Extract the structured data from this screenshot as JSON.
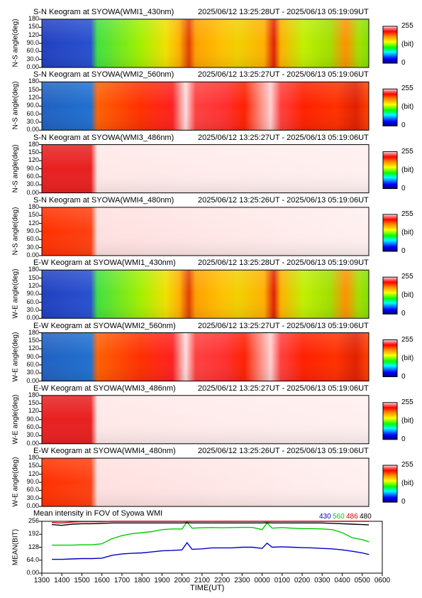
{
  "keogram_panels": [
    {
      "title": "S-N Keogram at SYOWA(WMI1_430nm)",
      "range": "2025/06/12 13:25:28UT - 2025/06/13 05:19:09UT",
      "ylabel": "N-S angle(deg)",
      "profile": "430"
    },
    {
      "title": "S-N Keogram at SYOWA(WMI2_560nm)",
      "range": "2025/06/12 13:25:27UT - 2025/06/13 05:19:06UT",
      "ylabel": "N-S angle(deg)",
      "profile": "560"
    },
    {
      "title": "S-N Keogram at SYOWA(WMI3_486nm)",
      "range": "2025/06/12 13:25:27UT - 2025/06/13 05:19:06UT",
      "ylabel": "N-S angle(deg)",
      "profile": "486"
    },
    {
      "title": "S-N Keogram at SYOWA(WMI4_480nm)",
      "range": "2025/06/12 13:25:26UT - 2025/06/13 05:19:06UT",
      "ylabel": "N-S angle(deg)",
      "profile": "480"
    },
    {
      "title": "E-W Keogram at SYOWA(WMI1_430nm)",
      "range": "2025/06/12 13:25:28UT - 2025/06/13 05:19:09UT",
      "ylabel": "W-E angle(deg)",
      "profile": "430"
    },
    {
      "title": "E-W Keogram at SYOWA(WMI2_560nm)",
      "range": "2025/06/12 13:25:27UT - 2025/06/13 05:19:06UT",
      "ylabel": "W-E angle(deg)",
      "profile": "560"
    },
    {
      "title": "E-W Keogram at SYOWA(WMI3_486nm)",
      "range": "2025/06/12 13:25:27UT - 2025/06/13 05:19:06UT",
      "ylabel": "W-E angle(deg)",
      "profile": "486"
    },
    {
      "title": "E-W Keogram at SYOWA(WMI4_480nm)",
      "range": "2025/06/12 13:25:26UT - 2025/06/13 05:19:06UT",
      "ylabel": "W-E angle(deg)",
      "profile": "480"
    }
  ],
  "keogram_yticks": [
    "180",
    "150",
    "120",
    "90.0",
    "60.0",
    "30.0",
    "0.00"
  ],
  "colorbar": {
    "max": "255",
    "unit": "(bit)",
    "min": "0"
  },
  "chart_data": {
    "type": "line",
    "title": "Mean intensity in FOV of Syowa WMI",
    "xlabel": "TIME(UT)",
    "ylabel": "MEAN(BIT)",
    "ylim": [
      0,
      256
    ],
    "yticks": [
      "256",
      "192",
      "128",
      "64.0",
      "0.00"
    ],
    "x_ticks": [
      "1300",
      "1400",
      "1500",
      "1600",
      "1700",
      "1800",
      "1900",
      "2000",
      "2100",
      "2200",
      "2300",
      "0000",
      "0100",
      "0200",
      "0300",
      "0400",
      "0500",
      "0600"
    ],
    "x": [
      "1330",
      "1400",
      "1430",
      "1500",
      "1530",
      "1600",
      "1630",
      "1700",
      "1730",
      "1800",
      "1830",
      "1900",
      "1930",
      "2000",
      "2015",
      "2030",
      "2100",
      "2130",
      "2200",
      "2230",
      "2300",
      "2330",
      "0000",
      "0015",
      "0030",
      "0100",
      "0130",
      "0200",
      "0230",
      "0300",
      "0330",
      "0400",
      "0430",
      "0500",
      "0520"
    ],
    "series": [
      {
        "name": "430",
        "color": "#0000cc",
        "values": [
          68,
          68,
          70,
          72,
          72,
          74,
          88,
          95,
          98,
          100,
          105,
          110,
          112,
          115,
          150,
          118,
          120,
          125,
          125,
          125,
          128,
          128,
          122,
          148,
          128,
          130,
          128,
          126,
          125,
          122,
          120,
          115,
          108,
          100,
          92
        ]
      },
      {
        "name": "560",
        "color": "#00cc00",
        "values": [
          138,
          138,
          138,
          140,
          140,
          145,
          170,
          185,
          195,
          200,
          205,
          215,
          218,
          218,
          252,
          222,
          224,
          225,
          224,
          225,
          226,
          226,
          215,
          248,
          222,
          225,
          222,
          220,
          220,
          218,
          215,
          200,
          175,
          165,
          155
        ]
      },
      {
        "name": "486",
        "color": "#cc0000",
        "values": [
          250,
          248,
          252,
          254,
          254,
          254,
          256,
          256,
          256,
          256,
          256,
          256,
          256,
          256,
          256,
          256,
          256,
          256,
          256,
          256,
          256,
          256,
          256,
          256,
          256,
          256,
          256,
          256,
          256,
          256,
          256,
          256,
          256,
          256,
          256
        ]
      },
      {
        "name": "480",
        "color": "#000000",
        "values": [
          240,
          236,
          242,
          244,
          244,
          246,
          248,
          248,
          248,
          248,
          248,
          248,
          248,
          248,
          249,
          248,
          248,
          248,
          248,
          248,
          248,
          248,
          248,
          249,
          248,
          248,
          248,
          248,
          248,
          248,
          246,
          244,
          242,
          240,
          238
        ]
      }
    ]
  }
}
